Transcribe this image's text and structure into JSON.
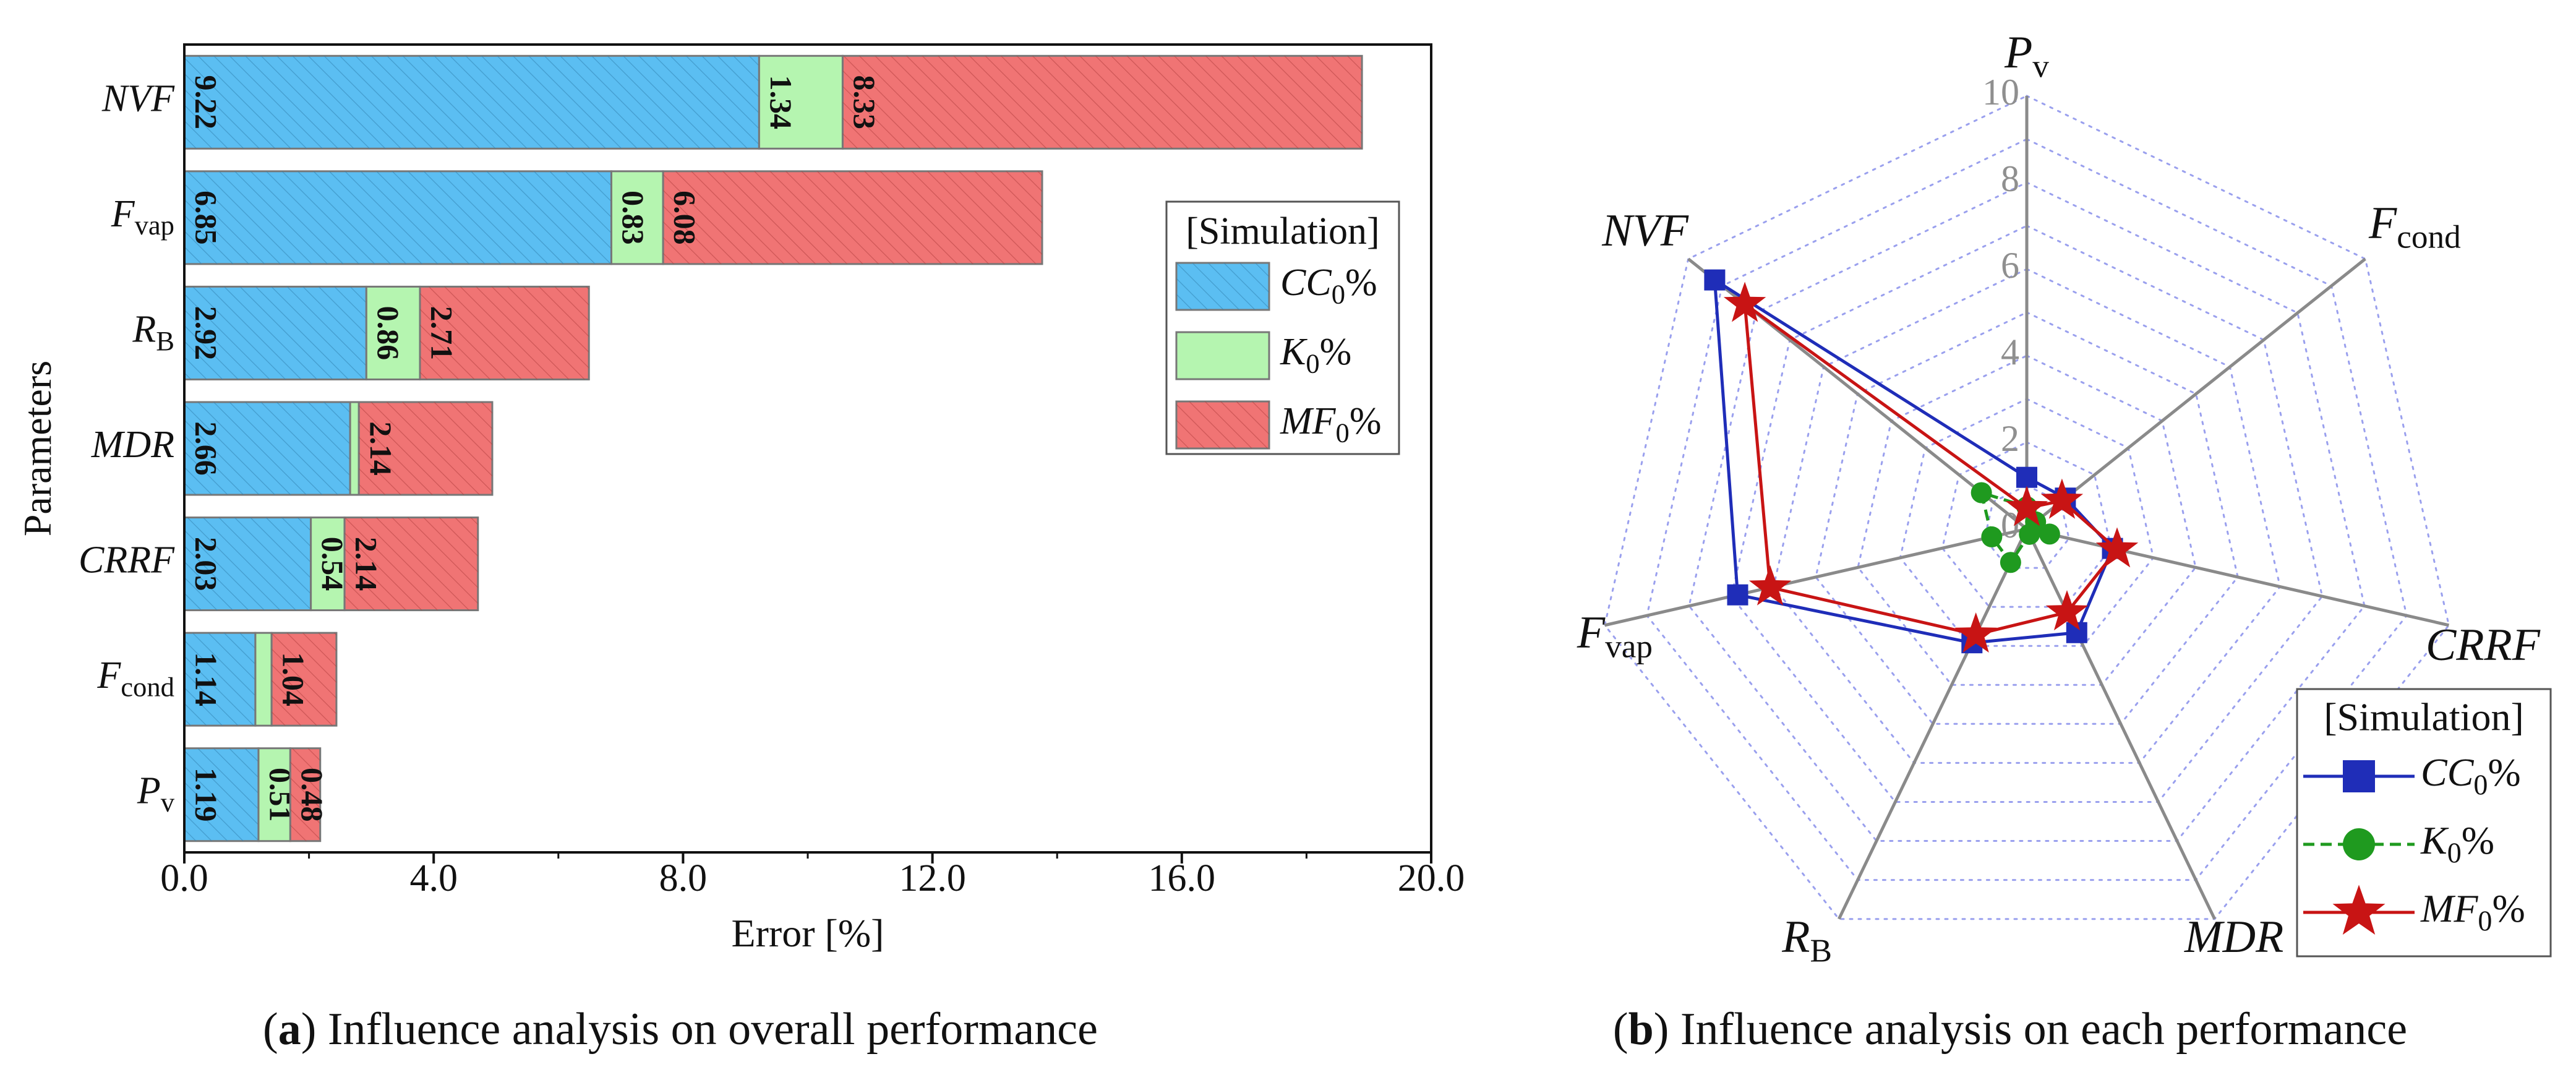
{
  "chart_data": [
    {
      "type": "bar",
      "orientation": "horizontal",
      "stacked": true,
      "categories": [
        "NVF",
        "F_vap",
        "R_B",
        "MDR",
        "CRRF",
        "F_cond",
        "P_v"
      ],
      "category_labels": [
        {
          "main": "NVF",
          "sub": "",
          "italic": true
        },
        {
          "main": "F",
          "sub": "vap",
          "italic": true
        },
        {
          "main": "R",
          "sub": "B",
          "italic": true
        },
        {
          "main": "MDR",
          "sub": "",
          "italic": true
        },
        {
          "main": "CRRF",
          "sub": "",
          "italic": true
        },
        {
          "main": "F",
          "sub": "cond",
          "italic": true
        },
        {
          "main": "P",
          "sub": "v",
          "italic": true
        }
      ],
      "series": [
        {
          "name": "CC0%",
          "label_main": "CC",
          "label_sub": "0",
          "label_tail": "%",
          "color": "#5bbef2",
          "values": [
            9.22,
            6.85,
            2.92,
            2.66,
            2.03,
            1.14,
            1.19
          ],
          "data_labels": [
            "9.22",
            "6.85",
            "2.92",
            "2.66",
            "2.03",
            "1.14",
            "1.19"
          ]
        },
        {
          "name": "K0%",
          "label_main": "K",
          "label_sub": "0",
          "label_tail": "%",
          "color": "#b5f5b0",
          "values": [
            1.34,
            0.83,
            0.86,
            0.14,
            0.54,
            0.26,
            0.51
          ],
          "data_labels": [
            "1.34",
            "0.83",
            "0.86",
            "",
            "0.54",
            "",
            "0.51"
          ]
        },
        {
          "name": "MF0%",
          "label_main": "MF",
          "label_sub": "0",
          "label_tail": "%",
          "color": "#f07474",
          "values": [
            8.33,
            6.08,
            2.71,
            2.14,
            2.14,
            1.04,
            0.48
          ],
          "data_labels": [
            "8.33",
            "6.08",
            "2.71",
            "2.14",
            "2.14",
            "1.04",
            "0.48"
          ]
        }
      ],
      "xlim": [
        0,
        20
      ],
      "xticks": [
        "0.0",
        "4.0",
        "8.0",
        "12.0",
        "16.0",
        "20.0"
      ],
      "xlabel": "Error [%]",
      "ylabel": "Parameters",
      "legend_title": "[Simulation]",
      "legend_position": "right",
      "grid": false,
      "caption_bold": "a",
      "caption_rest": " Influence analysis on overall performance"
    },
    {
      "type": "radar",
      "axes": [
        "P_v",
        "F_cond",
        "CRRF",
        "MDR",
        "R_B",
        "F_vap",
        "NVF"
      ],
      "axis_labels": [
        {
          "main": "P",
          "sub": "v"
        },
        {
          "main": "F",
          "sub": "cond"
        },
        {
          "main": "CRRF",
          "sub": ""
        },
        {
          "main": "MDR",
          "sub": ""
        },
        {
          "main": "R",
          "sub": "B"
        },
        {
          "main": "F",
          "sub": "vap"
        },
        {
          "main": "NVF",
          "sub": ""
        }
      ],
      "rlim": [
        0,
        10
      ],
      "rticks": [
        "0",
        "2",
        "4",
        "6",
        "8",
        "10"
      ],
      "series": [
        {
          "name": "CC0%",
          "label_main": "CC",
          "label_sub": "0",
          "label_tail": "%",
          "color": "#1f2db8",
          "marker": "square",
          "values": [
            1.19,
            1.14,
            2.03,
            2.66,
            2.92,
            6.85,
            9.22
          ]
        },
        {
          "name": "K0%",
          "label_main": "K",
          "label_sub": "0",
          "label_tail": "%",
          "color": "#1f9a1f",
          "marker": "circle",
          "values": [
            0.51,
            0.26,
            0.54,
            0.14,
            0.86,
            0.83,
            1.34
          ]
        },
        {
          "name": "MF0%",
          "label_main": "MF",
          "label_sub": "0",
          "label_tail": "%",
          "color": "#c81414",
          "marker": "star",
          "values": [
            0.48,
            1.04,
            2.14,
            2.14,
            2.71,
            6.08,
            8.33
          ]
        }
      ],
      "legend_title": "[Simulation]",
      "legend_position": "bottom-right",
      "grid": true,
      "caption_bold": "b",
      "caption_rest": " Influence analysis on each performance"
    }
  ]
}
